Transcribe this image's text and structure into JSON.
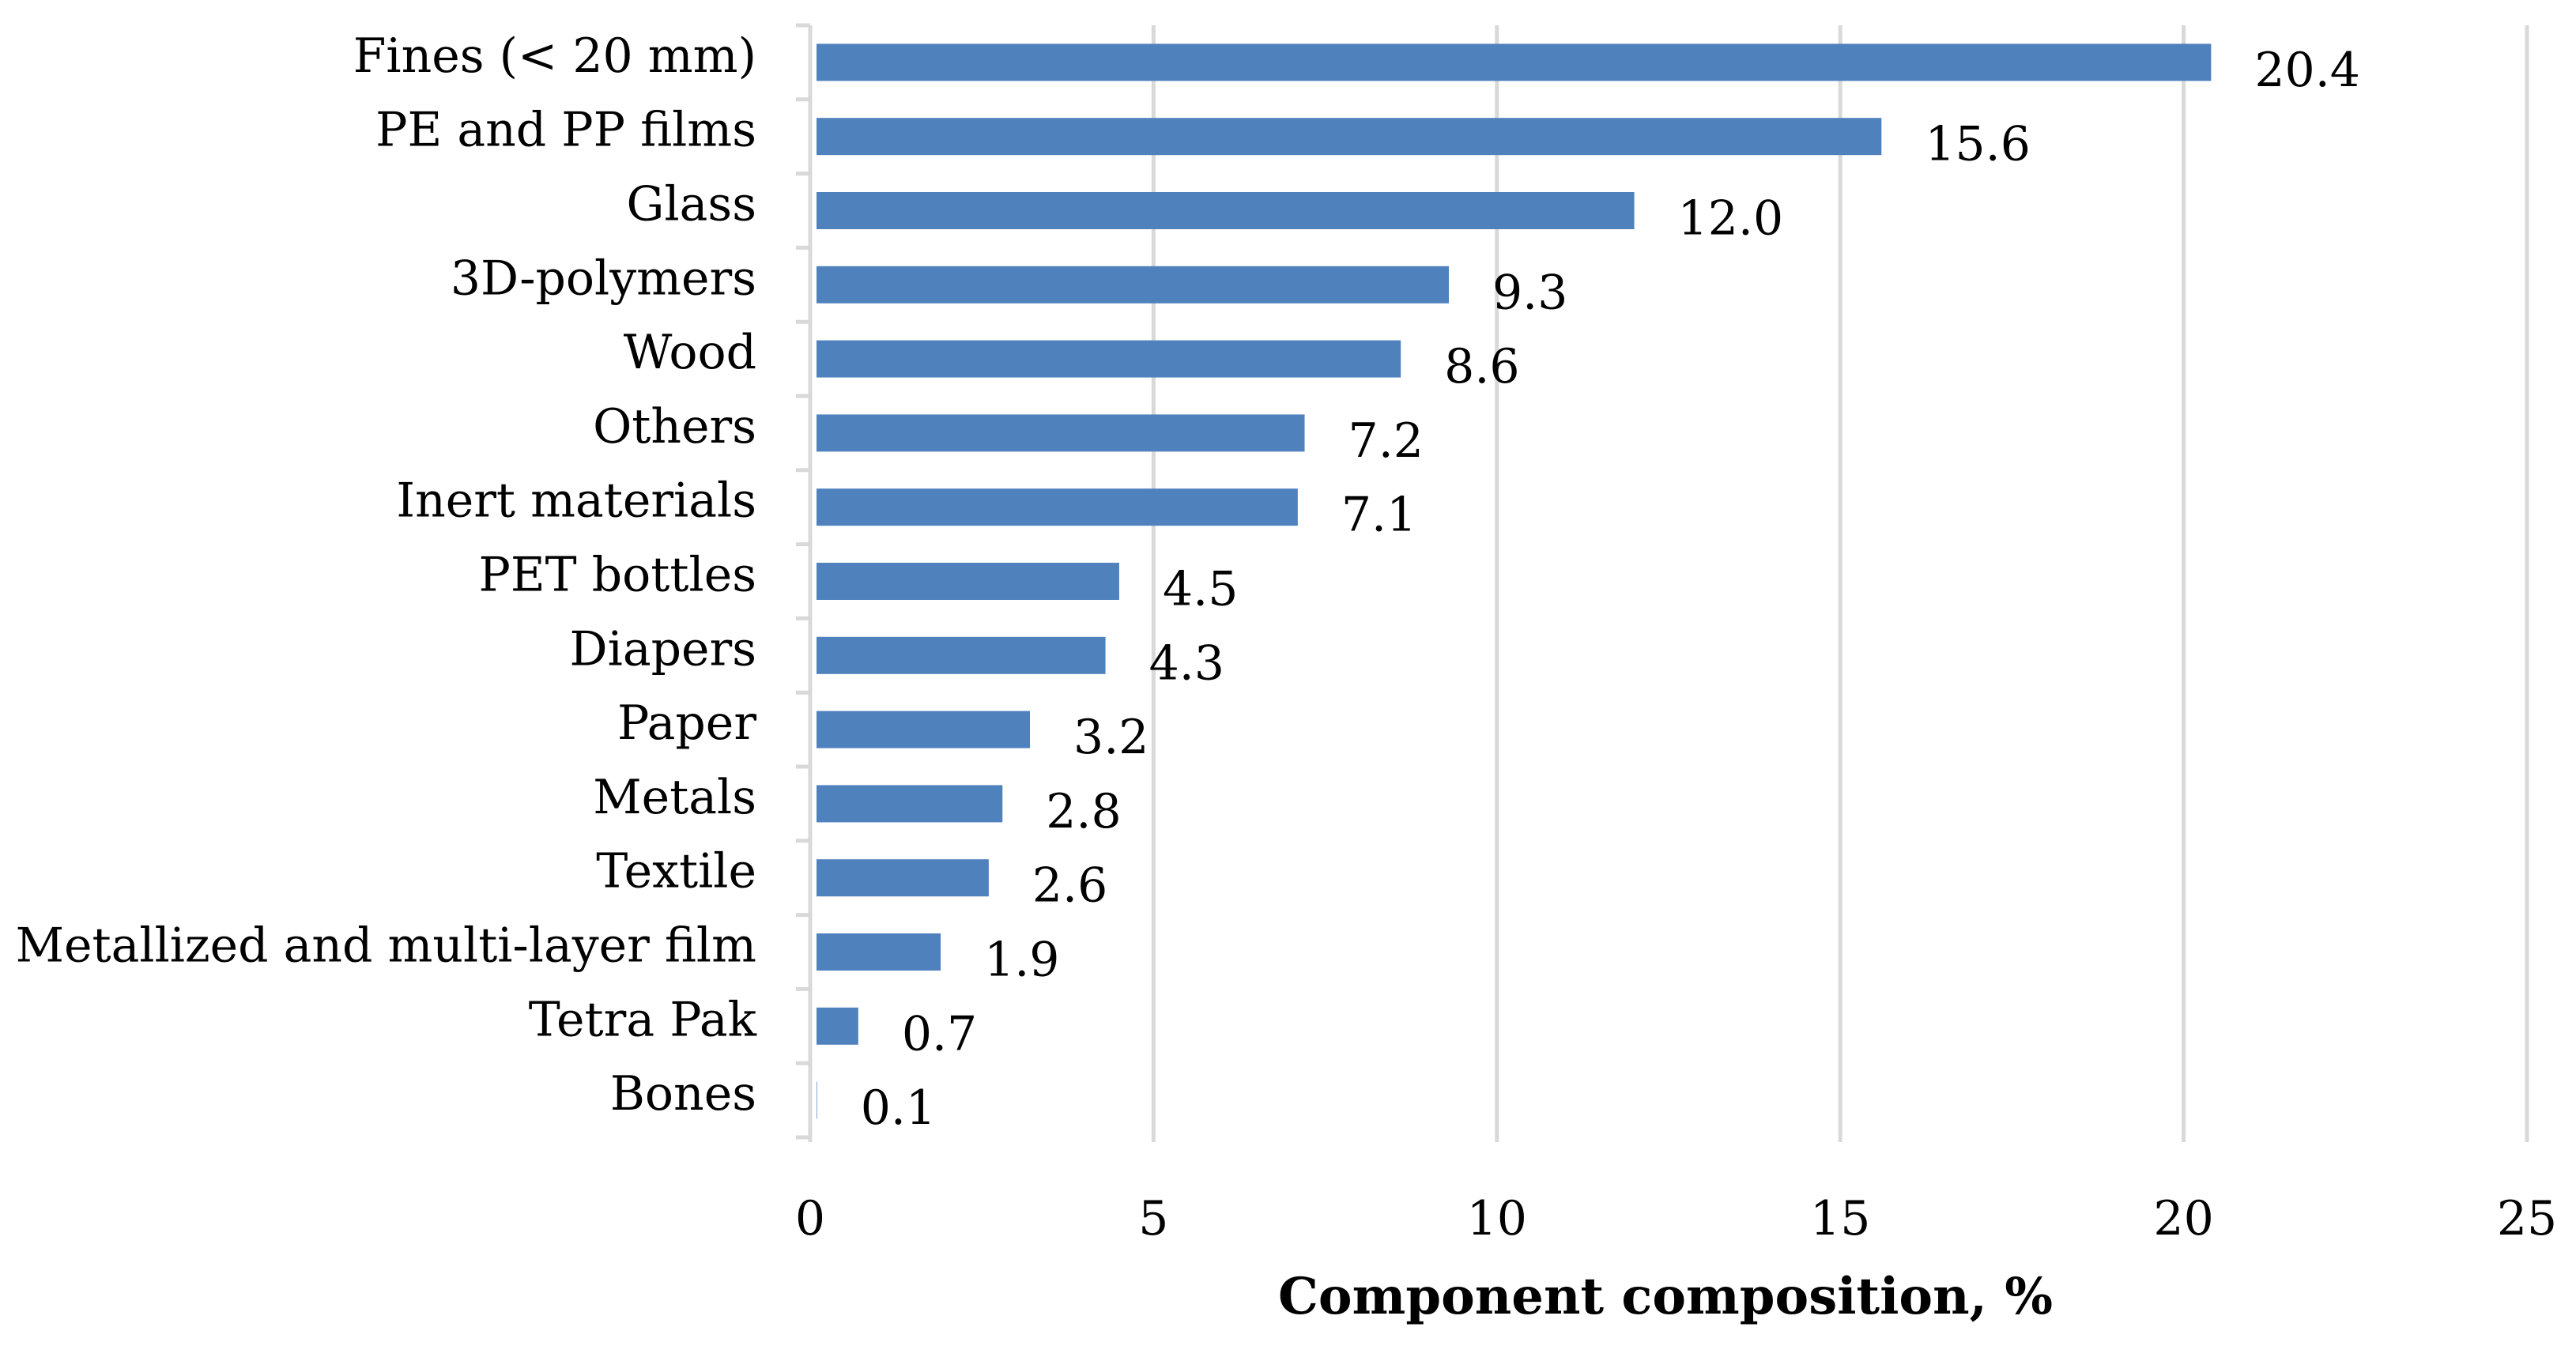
{
  "chart_data": {
    "type": "bar",
    "orientation": "horizontal",
    "title": "",
    "xlabel": "Component composition, %",
    "ylabel": "",
    "xlim": [
      0,
      25
    ],
    "xticks": [
      0,
      5,
      10,
      15,
      20,
      25
    ],
    "grid": true,
    "bar_color": "#4f81bd",
    "categories": [
      "Fines (< 20 mm)",
      "PE and PP films",
      "Glass",
      "3D-polymers",
      "Wood",
      "Others",
      "Inert materials",
      "PET bottles",
      "Diapers",
      "Paper",
      "Metals",
      "Textile",
      "Metallized and multi-layer film",
      "Tetra Pak",
      "Bones"
    ],
    "values": [
      20.4,
      15.6,
      12.0,
      9.3,
      8.6,
      7.2,
      7.1,
      4.5,
      4.3,
      3.2,
      2.8,
      2.6,
      1.9,
      0.7,
      0.1
    ],
    "value_labels": [
      "20.4",
      "15.6",
      "12.0",
      "9.3",
      "8.6",
      "7.2",
      "7.1",
      "4.5",
      "4.3",
      "3.2",
      "2.8",
      "2.6",
      "1.9",
      "0.7",
      "0.1"
    ]
  }
}
